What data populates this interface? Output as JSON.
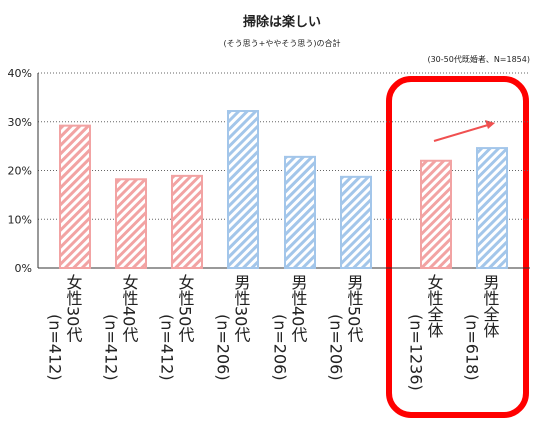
{
  "chart_data": {
    "type": "bar",
    "title": "掃除は楽しい",
    "subtitle": "(そう思う+ややそう思う)の合計",
    "note": "(30-50代既婚者、N=1854)",
    "categories": [
      "女性30代",
      "女性40代",
      "女性50代",
      "男性30代",
      "男性40代",
      "男性50代",
      "女性全体",
      "男性全体"
    ],
    "sample_sizes": [
      "(n=412)",
      "(n=412)",
      "(n=412)",
      "(n=206)",
      "(n=206)",
      "(n=206)",
      "(n=1236)",
      "(n=618)"
    ],
    "values": [
      29.2,
      18.2,
      18.9,
      32.2,
      22.8,
      18.7,
      22.0,
      24.6
    ],
    "colors": [
      "#f2a3a3",
      "#f2a3a3",
      "#f2a3a3",
      "#a3c6ea",
      "#a3c6ea",
      "#a3c6ea",
      "#f2a3a3",
      "#a3c6ea"
    ],
    "ylim": [
      0,
      40
    ],
    "yticks": [
      {
        "value": 0,
        "label": "0%"
      },
      {
        "value": 10,
        "label": "10%"
      },
      {
        "value": 20,
        "label": "20%"
      },
      {
        "value": 30,
        "label": "30%"
      },
      {
        "value": 40,
        "label": "40%"
      }
    ],
    "grid": true
  }
}
